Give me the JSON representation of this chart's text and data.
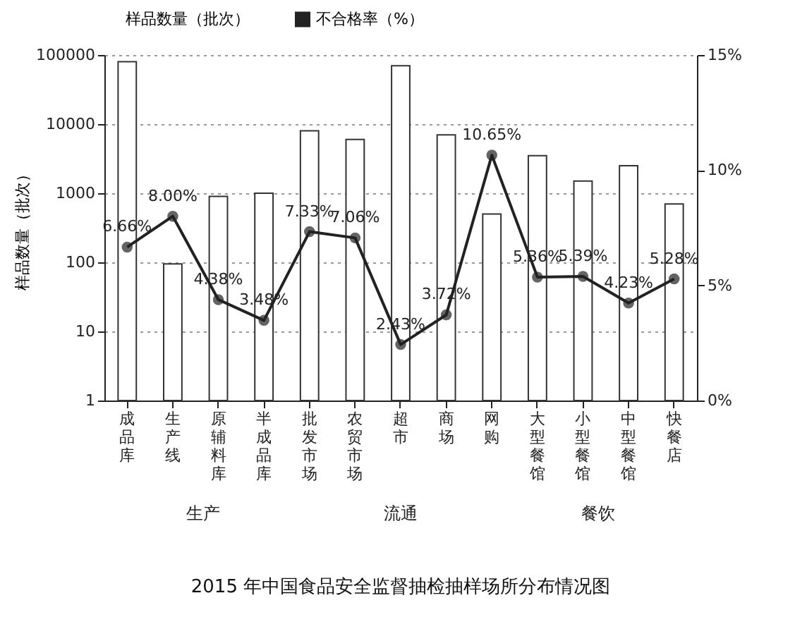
{
  "chart_data": {
    "type": "bar",
    "title": "2015 年中国食品安全监督抽检抽样场所分布情况图",
    "ylabel": "样品数量（批次）",
    "categories": [
      "成品库",
      "生产线",
      "原辅料库",
      "半成品库",
      "批发市场",
      "农贸市场",
      "超市",
      "商场",
      "网购",
      "大型餐馆",
      "小型餐馆",
      "中型餐馆",
      "快餐店"
    ],
    "series": [
      {
        "name": "样品数量（批次）",
        "color": "#ffffff",
        "values": [
          80000,
          95,
          900,
          1000,
          8000,
          6000,
          70000,
          7000,
          500,
          3500,
          1500,
          2500,
          700
        ]
      },
      {
        "name": "不合格率（%）",
        "type": "line",
        "axis": "y2",
        "color": "#222222",
        "marker": "circle",
        "values": [
          6.66,
          8.0,
          4.38,
          3.48,
          7.33,
          7.06,
          2.43,
          3.72,
          10.65,
          5.36,
          5.39,
          4.23,
          5.28
        ],
        "value_labels": [
          "6.66%",
          "8.00%",
          "4.38%",
          "3.48%",
          "7.33%",
          "7.06%",
          "2.43%",
          "3.72%",
          "10.65%",
          "5.36%",
          "5.39%",
          "4.23%",
          "5.28%"
        ]
      }
    ],
    "log": "y",
    "ylim": [
      1,
      100000
    ],
    "yticks": [
      1,
      10,
      100,
      1000,
      10000,
      100000
    ],
    "y2lim": [
      0,
      15
    ],
    "y2ticks": [
      {
        "value": 0,
        "label": "0%"
      },
      {
        "value": 5,
        "label": "5%"
      },
      {
        "value": 10,
        "label": "10%"
      },
      {
        "value": 15,
        "label": "15%"
      }
    ],
    "grid": "y",
    "legend": "top",
    "annotations": [
      "生产",
      "流通",
      "餐饮"
    ]
  }
}
